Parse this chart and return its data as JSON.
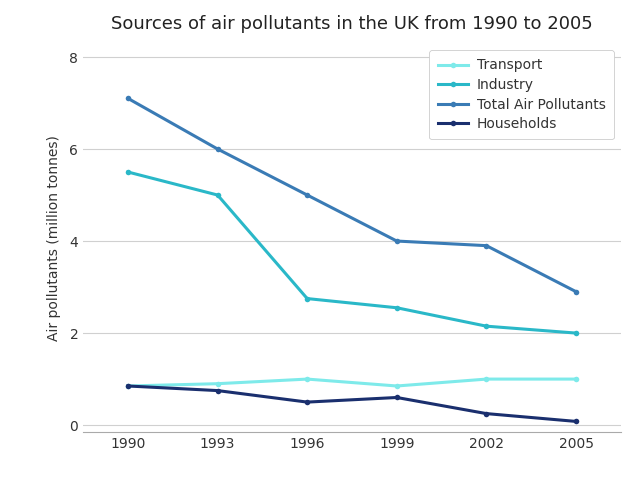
{
  "title": "Sources of air pollutants in the UK from 1990 to 2005",
  "ylabel": "Air pollutants (million tonnes)",
  "years": [
    1990,
    1993,
    1996,
    1999,
    2002,
    2005
  ],
  "series": {
    "Transport": {
      "values": [
        0.85,
        0.9,
        1.0,
        0.85,
        1.0,
        1.0
      ],
      "color": "#7eeaea",
      "linewidth": 2.2
    },
    "Industry": {
      "values": [
        5.5,
        5.0,
        2.75,
        2.55,
        2.15,
        2.0
      ],
      "color": "#2ab8c8",
      "linewidth": 2.2
    },
    "Total Air Pollutants": {
      "values": [
        7.1,
        6.0,
        5.0,
        4.0,
        3.9,
        2.9
      ],
      "color": "#3a7bb5",
      "linewidth": 2.2
    },
    "Households": {
      "values": [
        0.85,
        0.75,
        0.5,
        0.6,
        0.25,
        0.08
      ],
      "color": "#1a2f6e",
      "linewidth": 2.2
    }
  },
  "legend_order": [
    "Transport",
    "Industry",
    "Total Air Pollutants",
    "Households"
  ],
  "ylim": [
    -0.15,
    8.3
  ],
  "yticks": [
    0,
    2,
    4,
    6,
    8
  ],
  "background_color": "#ffffff",
  "grid_color": "#d0d0d0",
  "title_fontsize": 13,
  "label_fontsize": 10,
  "tick_fontsize": 10,
  "legend_fontsize": 10
}
